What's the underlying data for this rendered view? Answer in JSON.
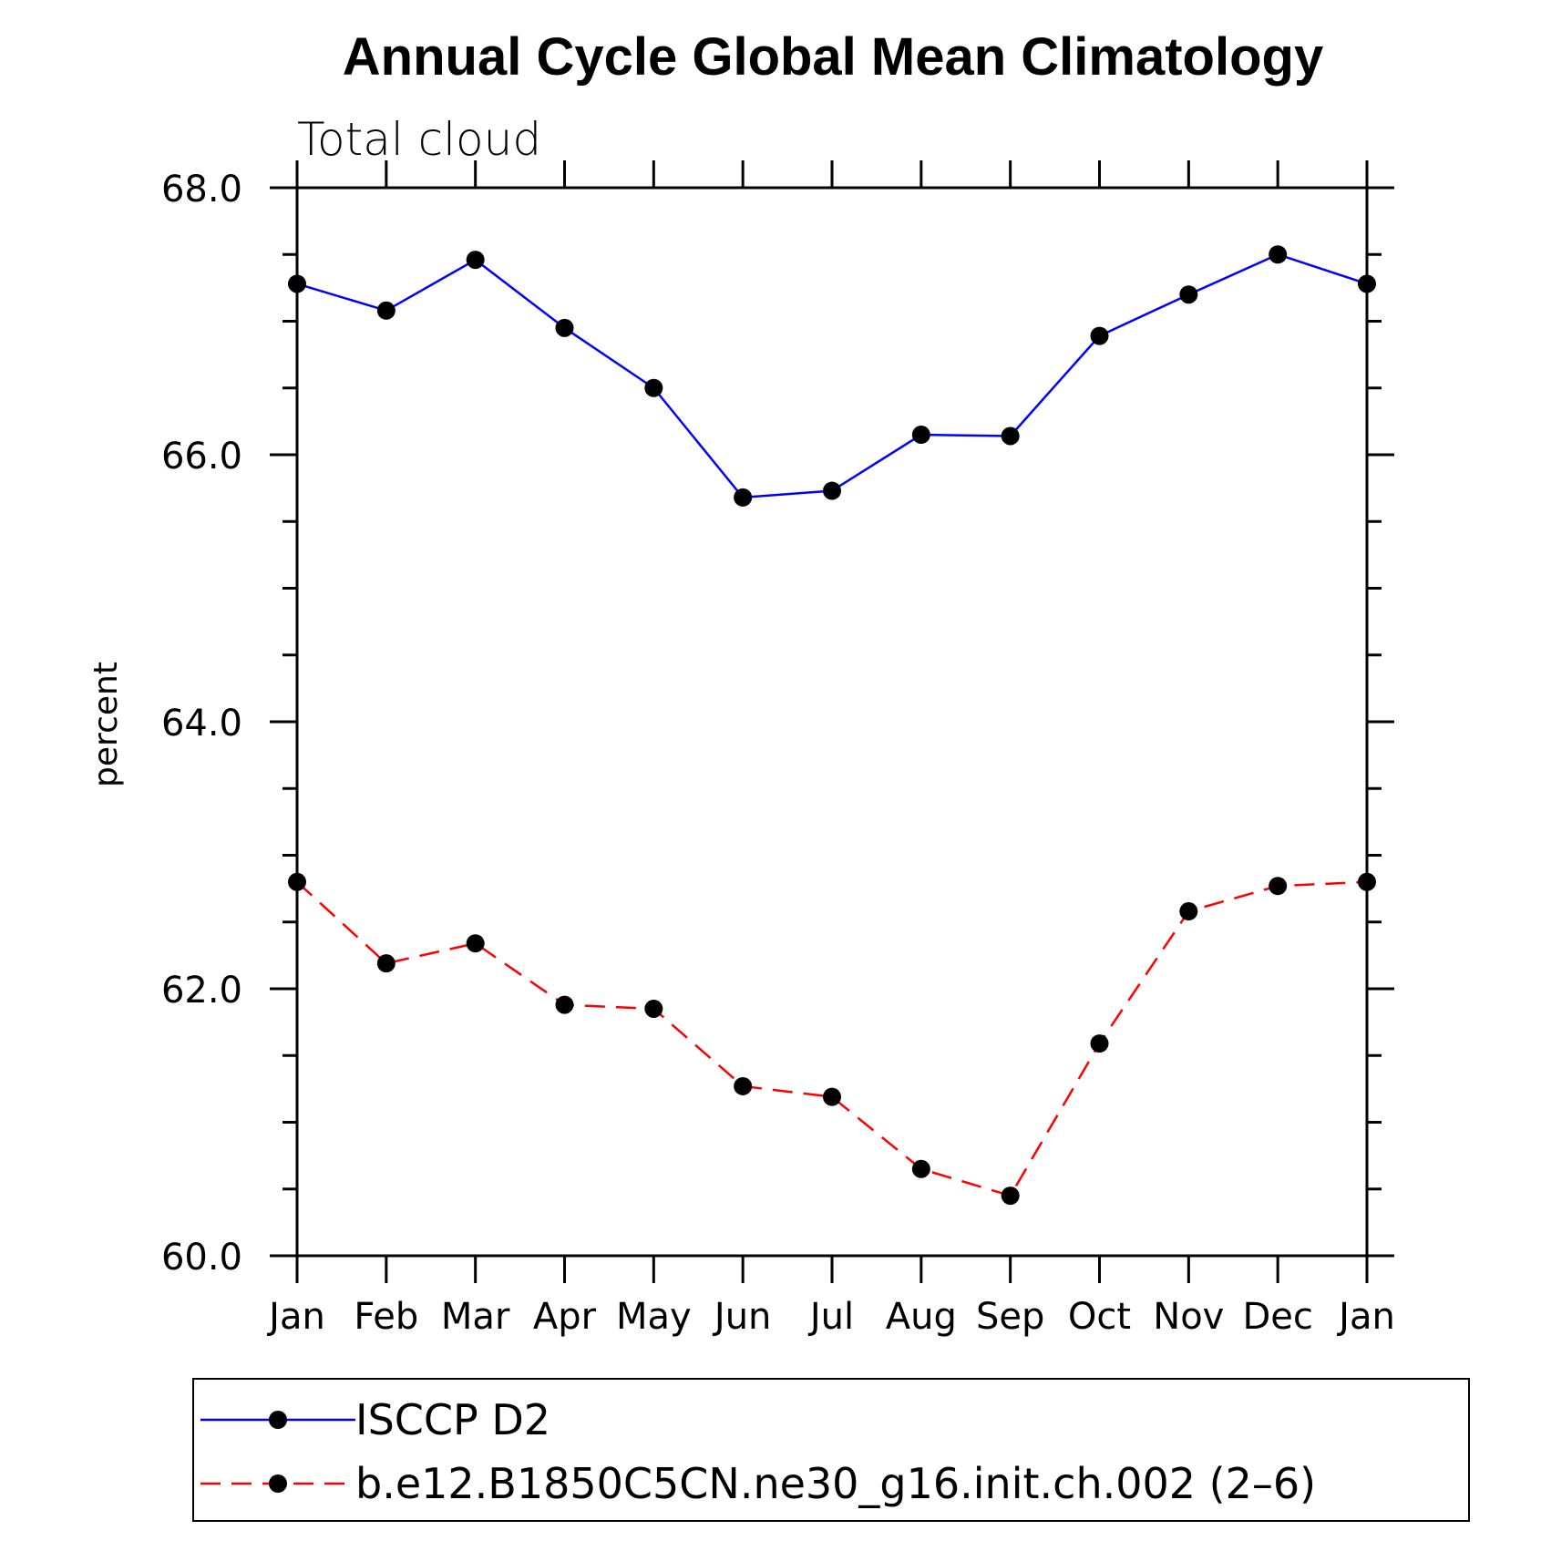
{
  "chart_data": {
    "type": "line",
    "title": "Annual Cycle Global Mean Climatology",
    "subtitle": "Total cloud",
    "xlabel": "",
    "ylabel": "percent",
    "categories": [
      "Jan",
      "Feb",
      "Mar",
      "Apr",
      "May",
      "Jun",
      "Jul",
      "Aug",
      "Sep",
      "Oct",
      "Nov",
      "Dec",
      "Jan"
    ],
    "ylim": [
      60.0,
      68.0
    ],
    "yticks": [
      "60.0",
      "62.0",
      "64.0",
      "66.0",
      "68.0"
    ],
    "ytick_values": [
      60,
      62,
      64,
      66,
      68
    ],
    "yminor_step": 0.5,
    "grid": false,
    "legend_position": "bottom",
    "series": [
      {
        "name": "ISCCP D2",
        "color": "#0000ff",
        "dash": "solid",
        "marker": "filled-circle",
        "values": [
          67.28,
          67.08,
          67.46,
          66.95,
          66.5,
          65.68,
          65.73,
          66.15,
          66.14,
          66.89,
          67.2,
          67.5,
          67.28
        ]
      },
      {
        "name": "b.e12.B1850C5CN.ne30_g16.init.ch.002 (2–6)",
        "color": "#ff0000",
        "dash": "dashed",
        "marker": "filled-circle",
        "values": [
          62.8,
          62.19,
          62.34,
          61.88,
          61.85,
          61.27,
          61.19,
          60.65,
          60.45,
          61.59,
          62.58,
          62.77,
          62.8
        ]
      }
    ]
  }
}
